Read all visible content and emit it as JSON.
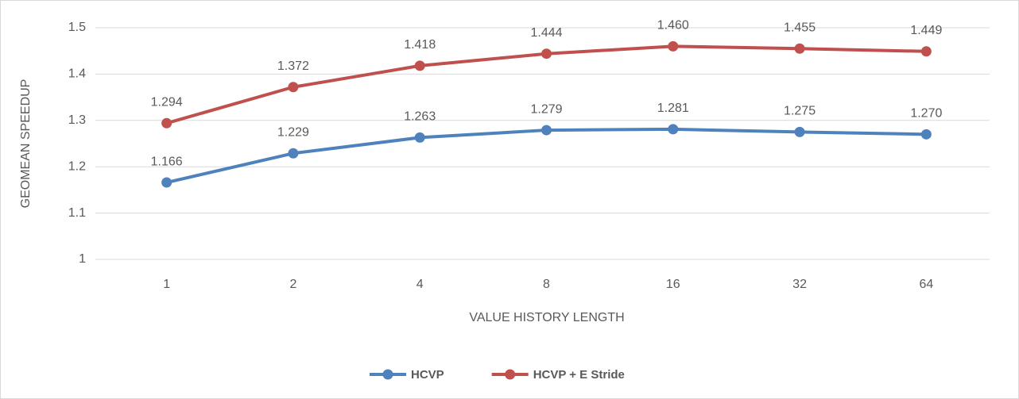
{
  "chart_data": {
    "type": "line",
    "x_label": "VALUE HISTORY LENGTH",
    "y_label": "GEOMEAN SPEEDUP",
    "categories": [
      "1",
      "2",
      "4",
      "8",
      "16",
      "32",
      "64"
    ],
    "series": [
      {
        "name": "HCVP",
        "color": "#4f81bd",
        "values": [
          1.166,
          1.229,
          1.263,
          1.279,
          1.281,
          1.275,
          1.27
        ],
        "value_labels": [
          "1.166",
          "1.229",
          "1.263",
          "1.279",
          "1.281",
          "1.275",
          "1.270"
        ]
      },
      {
        "name": "HCVP + E Stride",
        "color": "#c0504d",
        "values": [
          1.294,
          1.372,
          1.418,
          1.444,
          1.46,
          1.455,
          1.449
        ],
        "value_labels": [
          "1.294",
          "1.372",
          "1.418",
          "1.444",
          "1.460",
          "1.455",
          "1.449"
        ]
      }
    ],
    "ylim": [
      1,
      1.5
    ],
    "yticks": [
      1,
      1.1,
      1.2,
      1.3,
      1.4,
      1.5
    ],
    "grid": true,
    "legend": "bottom"
  }
}
